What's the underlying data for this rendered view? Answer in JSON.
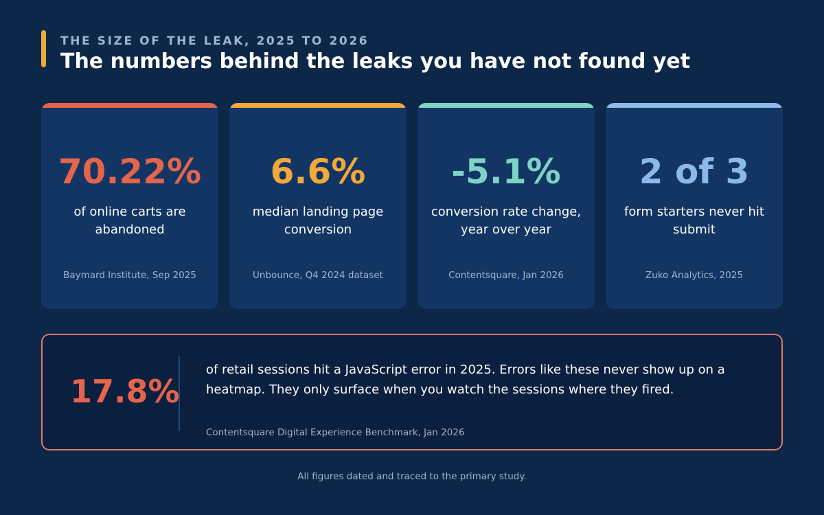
{
  "header": {
    "eyebrow": "THE SIZE OF THE LEAK, 2025 TO 2026",
    "title": "The numbers behind the leaks you have not found yet"
  },
  "cards": [
    {
      "stat": "70.22%",
      "description": "of online carts are abandoned",
      "source": "Baymard Institute, Sep 2025",
      "color": "#e4644c"
    },
    {
      "stat": "6.6%",
      "description": "median landing page conversion",
      "source": "Unbounce, Q4 2024 dataset",
      "color": "#f2a93b"
    },
    {
      "stat": "-5.1%",
      "description": "conversion rate change, year over year",
      "source": "Contentsquare, Jan 2026",
      "color": "#7dd3c4"
    },
    {
      "stat": "2 of 3",
      "description": "form starters never hit submit",
      "source": "Zuko Analytics, 2025",
      "color": "#8db8ea"
    }
  ],
  "callout": {
    "stat": "17.8%",
    "text": "of retail sessions hit a JavaScript error in 2025. Errors like these never show up on a heatmap. They only surface when you watch the sessions where they fired.",
    "source": "Contentsquare Digital Experience Benchmark, Jan 2026",
    "accent_color": "#e4644c",
    "border_color": "#e07a66"
  },
  "footer": {
    "note": "All figures dated and traced to the primary study."
  },
  "colors": {
    "background": "#0d2748",
    "card_background": "#123563",
    "header_accent": "#f2a93b",
    "muted_text": "#9fb4ce"
  }
}
